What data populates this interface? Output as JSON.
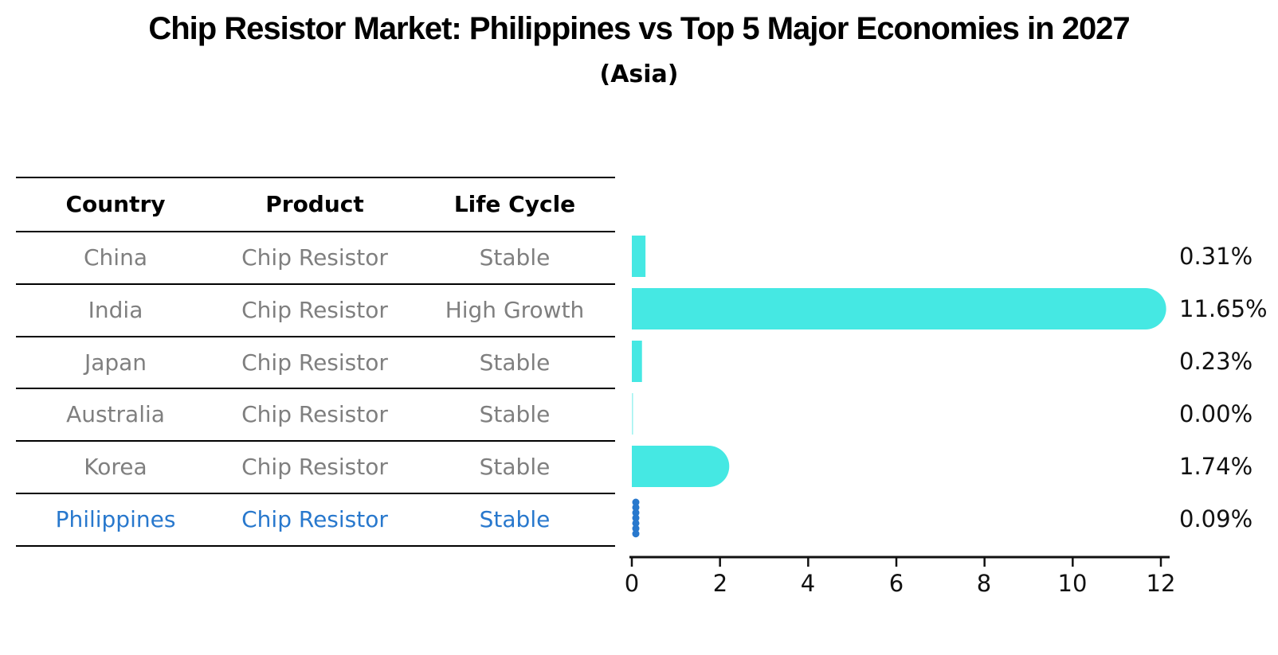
{
  "header": {
    "title": "Chip Resistor Market: Philippines vs Top 5 Major Economies in 2027",
    "subtitle": "(Asia)"
  },
  "table": {
    "columns": [
      "Country",
      "Product",
      "Life Cycle"
    ],
    "rows": [
      {
        "country": "China",
        "product": "Chip Resistor",
        "life_cycle": "Stable",
        "highlight": false
      },
      {
        "country": "India",
        "product": "Chip Resistor",
        "life_cycle": "High Growth",
        "highlight": false
      },
      {
        "country": "Japan",
        "product": "Chip Resistor",
        "life_cycle": "Stable",
        "highlight": false
      },
      {
        "country": "Australia",
        "product": "Chip Resistor",
        "life_cycle": "Stable",
        "highlight": false
      },
      {
        "country": "Korea",
        "product": "Chip Resistor",
        "life_cycle": "Stable",
        "highlight": false
      },
      {
        "country": "Philippines",
        "product": "Chip Resistor",
        "life_cycle": "Stable",
        "highlight": true
      }
    ]
  },
  "chart_data": {
    "type": "bar",
    "orientation": "horizontal",
    "title": "Chip Resistor Market: Philippines vs Top 5 Major Economies in 2027",
    "subtitle": "(Asia)",
    "categories": [
      "China",
      "India",
      "Japan",
      "Australia",
      "Korea",
      "Philippines"
    ],
    "values": [
      0.31,
      11.65,
      0.23,
      0.0,
      1.74,
      0.09
    ],
    "value_labels": [
      "0.31%",
      "11.65%",
      "0.23%",
      "0.00%",
      "1.74%",
      "0.09%"
    ],
    "xlabel": "",
    "ylabel": "",
    "xlim": [
      0,
      12
    ],
    "x_ticks": [
      0,
      2,
      4,
      6,
      8,
      10,
      12
    ],
    "grid": false,
    "legend": "none",
    "bar_color": "#45E8E3",
    "highlight_color": "#2878CD",
    "highlight_series": "Philippines"
  },
  "colors": {
    "bar_cyan": "#45E8E3",
    "highlight_blue": "#2878CD",
    "row_text_gray": "#7f7f7f",
    "axis_black": "#111111"
  }
}
